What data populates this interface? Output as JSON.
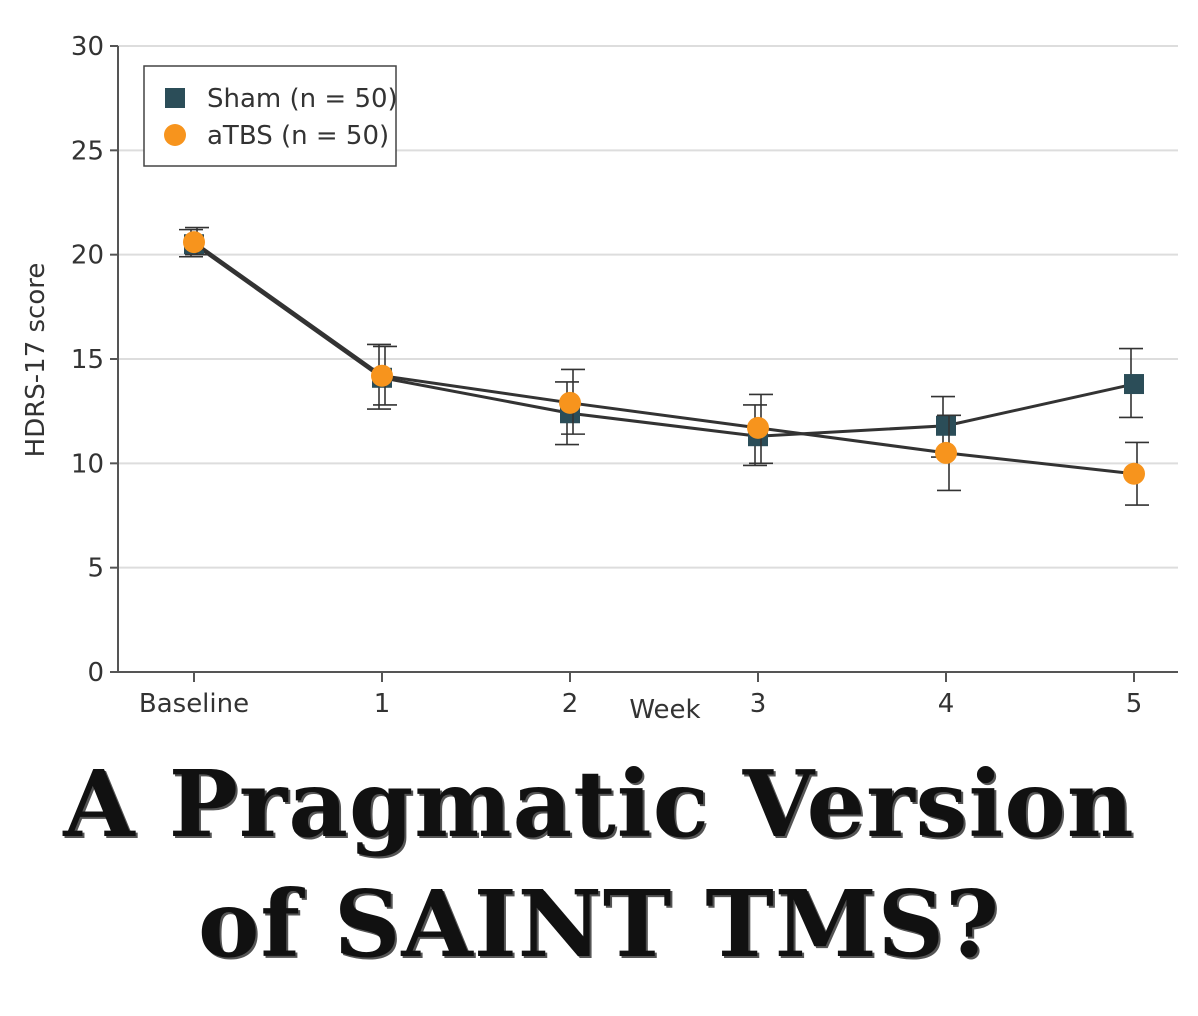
{
  "chart_data": {
    "type": "line",
    "ylabel": "HDRS-17 score",
    "xlabel": "Week",
    "categories": [
      "Baseline",
      "1",
      "2",
      "3",
      "4",
      "5"
    ],
    "ylim": [
      0,
      30
    ],
    "yticks": [
      0,
      5,
      10,
      15,
      20,
      25,
      30
    ],
    "grid": "horizontal",
    "legend": "top-left",
    "series": [
      {
        "name": "Sham (n = 50)",
        "marker": "square",
        "color": "#2b4d58",
        "values": [
          20.5,
          14.1,
          12.4,
          11.3,
          11.8,
          13.8
        ],
        "err_low": [
          19.9,
          12.6,
          10.9,
          9.9,
          10.3,
          12.2
        ],
        "err_high": [
          21.2,
          15.7,
          13.9,
          12.8,
          13.2,
          15.5
        ]
      },
      {
        "name": "aTBS (n = 50)",
        "marker": "circle",
        "color": "#f7941d",
        "values": [
          20.6,
          14.2,
          12.9,
          11.7,
          10.5,
          9.5
        ],
        "err_low": [
          20.0,
          12.8,
          11.4,
          10.0,
          8.7,
          8.0
        ],
        "err_high": [
          21.3,
          15.6,
          14.5,
          13.3,
          12.3,
          11.0
        ]
      }
    ]
  },
  "headline": {
    "line1": "A Pragmatic Version",
    "line2": "of SAINT TMS?"
  },
  "colors": {
    "line": "#333333",
    "grid": "#dddddd",
    "axis": "#555555"
  }
}
